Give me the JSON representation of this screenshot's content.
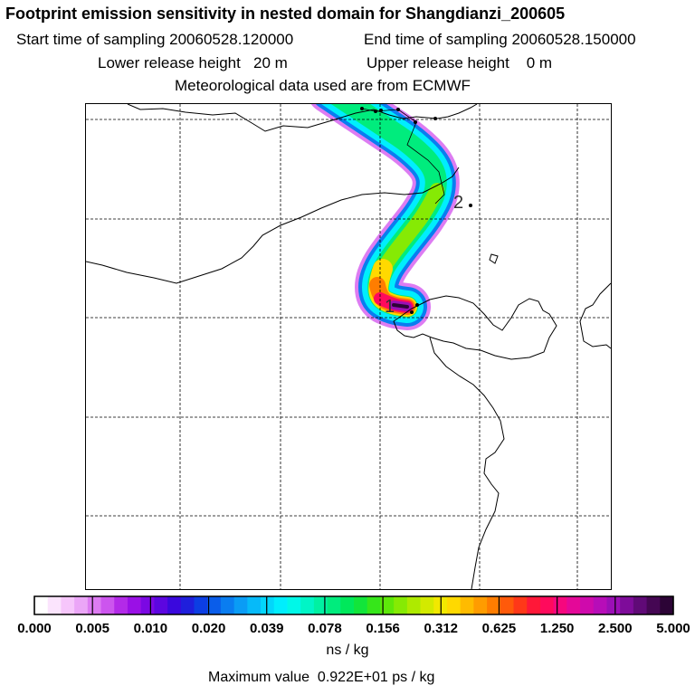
{
  "header": {
    "title": "Footprint emission sensitivity in nested domain for Shangdianzi_200605",
    "start_time": "Start time of sampling 20060528.120000",
    "end_time": "End time of sampling 20060528.150000",
    "lower_height": "Lower release height   20 m",
    "upper_height": "Upper release height    0 m",
    "met_data": "Meteorological data used are from ECMWF"
  },
  "chart_data": {
    "type": "heatmap",
    "title": "Footprint emission sensitivity in nested domain for Shangdianzi_200605",
    "units": "ns / kg",
    "max_value_text": "Maximum value  0.922E+01 ps / kg",
    "trajectory_labels": [
      "1",
      "2"
    ],
    "colorbar": {
      "tick_labels": [
        "0.000",
        "0.005",
        "0.010",
        "0.020",
        "0.039",
        "0.078",
        "0.156",
        "0.312",
        "0.625",
        "1.250",
        "2.500",
        "5.000"
      ],
      "tick_values": [
        0.0,
        0.005,
        0.01,
        0.02,
        0.039,
        0.078,
        0.156,
        0.312,
        0.625,
        1.25,
        2.5,
        5.0
      ],
      "colors": [
        "#ffffff",
        "#fbe4fd",
        "#f6c6fb",
        "#eba6f7",
        "#dd7cf2",
        "#cc55ee",
        "#b32ae8",
        "#9a10e6",
        "#7b08e3",
        "#5c06e0",
        "#3a08dd",
        "#1f1fdc",
        "#0c3ee3",
        "#0a5dea",
        "#0a7df0",
        "#0a9cf5",
        "#06baf9",
        "#03d6fb",
        "#00eefd",
        "#00f8e8",
        "#00f5c6",
        "#00f1a2",
        "#00ec7d",
        "#00e85b",
        "#12e53a",
        "#36e61a",
        "#5ee80a",
        "#86ea04",
        "#aeea00",
        "#d3ea00",
        "#f2e800",
        "#ffd900",
        "#ffbb00",
        "#ff9c00",
        "#ff7d00",
        "#ff5a0a",
        "#ff3818",
        "#ff1838",
        "#ff0a5c",
        "#f6077e",
        "#e40898",
        "#cf0aac",
        "#b70db8",
        "#9b0fb6",
        "#7e0c9a",
        "#600a77",
        "#450753",
        "#2c0436"
      ]
    },
    "field": [
      {
        "level": 0.005,
        "color": "#dd7cf2"
      },
      {
        "level": 0.02,
        "color": "#0a7df0"
      },
      {
        "level": 0.039,
        "color": "#00eefd"
      },
      {
        "level": 0.078,
        "color": "#00ec7d"
      },
      {
        "level": 0.156,
        "color": "#86ea04"
      },
      {
        "level": 0.312,
        "color": "#ffd900"
      },
      {
        "level": 0.625,
        "color": "#ff7d00"
      },
      {
        "level": 1.25,
        "color": "#ff0a5c"
      },
      {
        "level": 2.5,
        "color": "#9b0fb6"
      },
      {
        "level": 5.0,
        "color": "#2c0436"
      }
    ]
  }
}
